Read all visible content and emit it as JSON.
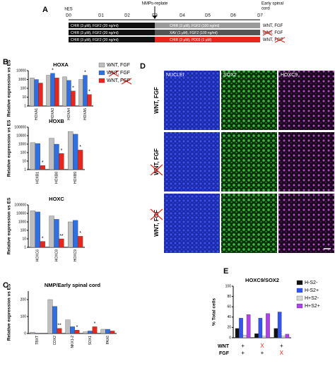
{
  "panel_labels": [
    "A",
    "B",
    "C",
    "D",
    "E"
  ],
  "timeline": {
    "start": "hES",
    "days": [
      "D0",
      "D1",
      "D2",
      "D3",
      "D4",
      "D5",
      "D6",
      "D7"
    ],
    "event": "NMPs-replate",
    "end": [
      "Early spinal",
      "cord"
    ],
    "rows": [
      {
        "phase1": "CHIR (3 μM), FGF2 (20 ng/ml)",
        "phase2": "CHIR (3 μM), FGF2 (100 ng/ml)",
        "label": "WNT, FGF"
      },
      {
        "phase1": "CHIR (3 μM), FGF2 (20 ng/ml)",
        "phase2": "XAV (1 μM), FGF2 (100 ng/ml)",
        "label": "WNT, FGF"
      },
      {
        "phase1": "CHIR (3 μM), FGF2 (20 ng/ml)",
        "phase2": "CHIR (3 μM), PD03 (1 μM)",
        "label": "WNT, FGF"
      }
    ]
  },
  "microscopy": {
    "columns": [
      "NUCLEI",
      "SOX2",
      "HOXC9"
    ],
    "rows": [
      "WNT, FGF",
      "WNT, FGF",
      "WNT, FGF"
    ]
  },
  "chart_data": [
    {
      "type": "bar",
      "title": "HOXA",
      "ylabel": "Relative expression vs ES",
      "log": true,
      "legend": "right",
      "categories": [
        "HOXA1",
        "HOXA3",
        "HOXA4",
        "HOXA5"
      ],
      "ylim": [
        1,
        10000
      ],
      "yticks": [
        1,
        10,
        100,
        1000,
        10000
      ],
      "series": [
        {
          "name": "WNT, FGF",
          "color": "#bfbfbf",
          "values": [
            1500,
            3000,
            2000,
            1000
          ]
        },
        {
          "name": "WNT, FGF",
          "color": "#2f6fe0",
          "values": [
            1000,
            5000,
            800,
            3000
          ],
          "stars": [
            null,
            "*",
            null,
            "*"
          ]
        },
        {
          "name": "WNT, FGF",
          "color": "#e8261c",
          "values": [
            400,
            1500,
            50,
            20
          ],
          "stars": [
            null,
            null,
            "*",
            "*"
          ]
        }
      ]
    },
    {
      "type": "bar",
      "title": "HOXB",
      "ylabel": "Relative expression vs ES",
      "log": true,
      "categories": [
        "HOXB1",
        "HOXB8",
        "HOXB9"
      ],
      "ylim": [
        1,
        100000
      ],
      "yticks": [
        1,
        10,
        100,
        1000,
        10000,
        100000
      ],
      "series": [
        {
          "name": "WNT, FGF",
          "color": "#bfbfbf",
          "values": [
            1500,
            5000,
            30000
          ]
        },
        {
          "name": "WNT, FGF",
          "color": "#2f6fe0",
          "values": [
            1200,
            1000,
            15000
          ]
        },
        {
          "name": "WNT, FGF",
          "color": "#e8261c",
          "values": [
            3,
            80,
            200
          ],
          "stars": [
            "*",
            "*",
            "*"
          ]
        }
      ]
    },
    {
      "type": "bar",
      "title": "HOXC",
      "ylabel": "Relative expression vs ES",
      "log": true,
      "categories": [
        "HOXC6",
        "HOXC8",
        "HOXC9"
      ],
      "ylim": [
        1,
        100000
      ],
      "yticks": [
        1,
        10,
        100,
        1000,
        10000,
        100000
      ],
      "series": [
        {
          "name": "WNT, FGF",
          "color": "#bfbfbf",
          "values": [
            20000,
            5000,
            1000
          ]
        },
        {
          "name": "WNT, FGF",
          "color": "#2f6fe0",
          "values": [
            15000,
            2000,
            1500
          ]
        },
        {
          "name": "WNT, FGF",
          "color": "#e8261c",
          "values": [
            5,
            10,
            20
          ],
          "stars": [
            "*",
            "**",
            "*"
          ]
        }
      ]
    },
    {
      "type": "bar",
      "title": "NMP/Early spinal cord",
      "ylabel": "Relative expression vs ES",
      "log": false,
      "categories": [
        "TBXT",
        "CDX2",
        "NKX1-2",
        "SOX1",
        "PAX6"
      ],
      "ylim": [
        0,
        250
      ],
      "yticks": [
        0,
        100,
        200
      ],
      "series": [
        {
          "name": "WNT, FGF",
          "color": "#bfbfbf",
          "values": [
            8,
            200,
            80,
            10,
            25
          ]
        },
        {
          "name": "WNT, FGF",
          "color": "#2f6fe0",
          "values": [
            2,
            160,
            40,
            15,
            25
          ]
        },
        {
          "name": "WNT, FGF",
          "color": "#e8261c",
          "values": [
            0,
            30,
            20,
            40,
            15
          ],
          "stars": [
            null,
            "**",
            "*",
            "*",
            null
          ]
        }
      ]
    },
    {
      "type": "bar",
      "title": "HOXC9/SOX2",
      "ylabel": "% Total cells",
      "log": false,
      "legend": "right",
      "categories": [
        null,
        null,
        null
      ],
      "ylim": [
        0,
        100
      ],
      "yticks": [
        0,
        20,
        40,
        60,
        80,
        100
      ],
      "series": [
        {
          "name": "H-S2-",
          "color": "#111111",
          "values": [
            18,
            8,
            18
          ]
        },
        {
          "name": "H-S2+",
          "color": "#3355ee",
          "values": [
            38,
            38,
            50
          ]
        },
        {
          "name": "H+S2-",
          "color": "#d8d8d8",
          "values": [
            5,
            3,
            3
          ]
        },
        {
          "name": "H+S2+",
          "color": "#b040e8",
          "values": [
            45,
            47,
            7
          ]
        }
      ],
      "conditions": [
        {
          "label": "WNT",
          "marks": [
            "+",
            "X",
            "+"
          ],
          "colors": [
            "#000000",
            "#e8261c",
            "#000000"
          ]
        },
        {
          "label": "FGF",
          "marks": [
            "+",
            "+",
            "X"
          ],
          "colors": [
            "#000000",
            "#000000",
            "#e8261c"
          ]
        }
      ]
    }
  ]
}
